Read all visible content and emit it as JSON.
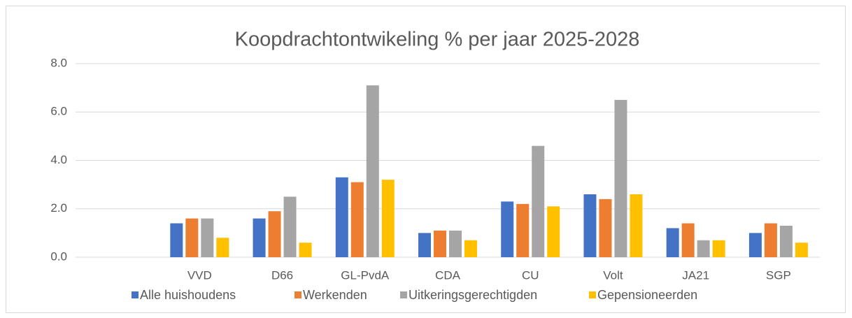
{
  "chart_data": {
    "type": "bar",
    "title": "Koopdrachtontwikeling % per jaar 2025-2028",
    "categories": [
      null,
      "VVD",
      "D66",
      "GL-PvdA",
      "CDA",
      "CU",
      "Volt",
      "JA21",
      "SGP"
    ],
    "series": [
      {
        "name": "Alle huishoudens",
        "color": "#4472c4",
        "values": [
          null,
          1.4,
          1.6,
          3.3,
          1.0,
          2.3,
          2.6,
          1.2,
          1.0
        ]
      },
      {
        "name": "Werkenden",
        "color": "#ed7d31",
        "values": [
          null,
          1.6,
          1.9,
          3.1,
          1.1,
          2.2,
          2.4,
          1.4,
          1.4
        ]
      },
      {
        "name": "Uitkeringsgerechtigden",
        "color": "#a5a5a5",
        "values": [
          null,
          1.6,
          2.5,
          7.1,
          1.1,
          4.6,
          6.5,
          0.7,
          1.3
        ]
      },
      {
        "name": "Gepensioneerden",
        "color": "#ffc000",
        "values": [
          null,
          0.8,
          0.6,
          3.2,
          0.7,
          2.1,
          2.6,
          0.7,
          0.6
        ]
      }
    ],
    "ylim": [
      0,
      8
    ],
    "yticks": [
      {
        "value": 0,
        "label": "0.0"
      },
      {
        "value": 2,
        "label": "2.0"
      },
      {
        "value": 4,
        "label": "4.0"
      },
      {
        "value": 6,
        "label": "6.0"
      },
      {
        "value": 8,
        "label": "8.0"
      }
    ],
    "grid": true,
    "legend": "bottom"
  }
}
